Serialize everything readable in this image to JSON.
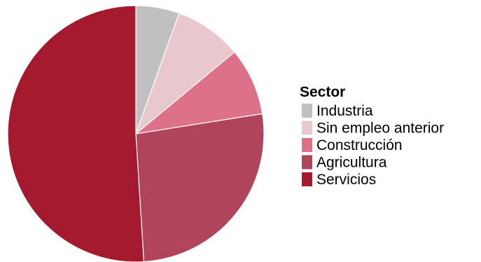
{
  "chart_data": {
    "type": "pie",
    "legend_title": "Sector",
    "legend_position": "right",
    "slices": [
      {
        "label": "Industria",
        "value": 5.5,
        "color": "#c0c0c0"
      },
      {
        "label": "Sin empleo anterior",
        "value": 8.5,
        "color": "#e8c8cc"
      },
      {
        "label": "Construcción",
        "value": 8.5,
        "color": "#dd7189"
      },
      {
        "label": "Agricultura",
        "value": 26.5,
        "color": "#b0445a"
      },
      {
        "label": "Servicios",
        "value": 51.0,
        "color": "#a3192e"
      }
    ]
  }
}
